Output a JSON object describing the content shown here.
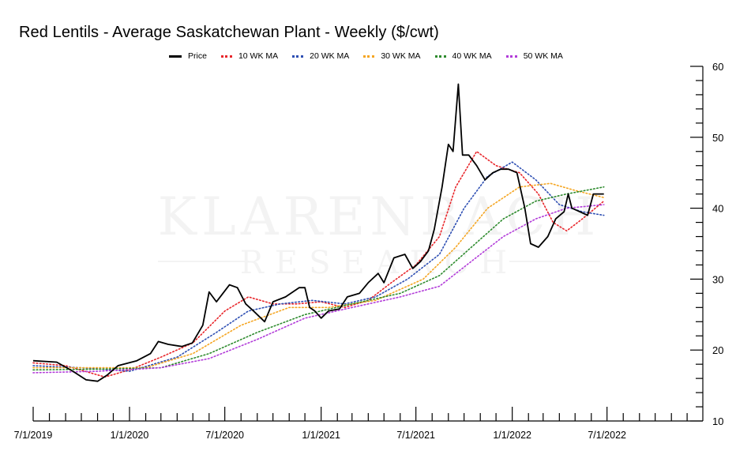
{
  "chart_data": {
    "type": "line",
    "title": "Red Lentils - Average Saskatchewan Plant - Weekly ($/cwt)",
    "watermark": [
      "KLARENBACH",
      "RESEARCH"
    ],
    "xlabel": "",
    "ylabel": "",
    "x_ticks": [
      "7/1/2019",
      "1/1/2020",
      "7/1/2020",
      "1/1/2021",
      "7/1/2021",
      "1/1/2022",
      "7/1/2022"
    ],
    "y_ticks": [
      10,
      20,
      30,
      40,
      50,
      60
    ],
    "ylim": [
      10,
      60
    ],
    "xlim": [
      "2019-07-01",
      "2022-12-31"
    ],
    "grid": false,
    "legend_position": "top",
    "series": [
      {
        "name": "Price",
        "color": "#000000",
        "style": "solid",
        "points": [
          [
            "2019-07-01",
            18.5
          ],
          [
            "2019-08-15",
            18.3
          ],
          [
            "2019-09-15",
            17.0
          ],
          [
            "2019-10-10",
            15.8
          ],
          [
            "2019-11-01",
            15.6
          ],
          [
            "2019-11-20",
            16.5
          ],
          [
            "2019-12-10",
            17.8
          ],
          [
            "2020-01-15",
            18.5
          ],
          [
            "2020-02-10",
            19.5
          ],
          [
            "2020-02-25",
            21.2
          ],
          [
            "2020-03-15",
            20.8
          ],
          [
            "2020-04-10",
            20.5
          ],
          [
            "2020-04-30",
            21.0
          ],
          [
            "2020-05-20",
            23.5
          ],
          [
            "2020-06-01",
            28.2
          ],
          [
            "2020-06-15",
            26.8
          ],
          [
            "2020-07-10",
            29.2
          ],
          [
            "2020-07-25",
            28.8
          ],
          [
            "2020-08-10",
            26.5
          ],
          [
            "2020-08-25",
            25.5
          ],
          [
            "2020-09-15",
            24.0
          ],
          [
            "2020-10-01",
            26.8
          ],
          [
            "2020-10-25",
            27.5
          ],
          [
            "2020-11-20",
            28.8
          ],
          [
            "2020-12-01",
            28.8
          ],
          [
            "2020-12-10",
            26.0
          ],
          [
            "2020-12-20",
            25.5
          ],
          [
            "2021-01-01",
            24.5
          ],
          [
            "2021-01-15",
            25.5
          ],
          [
            "2021-02-05",
            25.8
          ],
          [
            "2021-02-20",
            27.5
          ],
          [
            "2021-03-15",
            28.0
          ],
          [
            "2021-04-01",
            29.5
          ],
          [
            "2021-04-20",
            30.8
          ],
          [
            "2021-05-01",
            29.5
          ],
          [
            "2021-05-20",
            33.0
          ],
          [
            "2021-06-10",
            33.5
          ],
          [
            "2021-06-25",
            31.5
          ],
          [
            "2021-07-10",
            32.5
          ],
          [
            "2021-07-25",
            34.0
          ],
          [
            "2021-08-05",
            37.0
          ],
          [
            "2021-08-20",
            43.0
          ],
          [
            "2021-09-01",
            49.0
          ],
          [
            "2021-09-10",
            48.0
          ],
          [
            "2021-09-20",
            57.5
          ],
          [
            "2021-09-28",
            47.5
          ],
          [
            "2021-10-10",
            47.5
          ],
          [
            "2021-10-25",
            46.0
          ],
          [
            "2021-11-10",
            44.0
          ],
          [
            "2021-11-25",
            45.0
          ],
          [
            "2021-12-10",
            45.5
          ],
          [
            "2021-12-25",
            45.5
          ],
          [
            "2022-01-10",
            45.0
          ],
          [
            "2022-01-25",
            40.0
          ],
          [
            "2022-02-05",
            35.0
          ],
          [
            "2022-02-20",
            34.5
          ],
          [
            "2022-03-10",
            36.0
          ],
          [
            "2022-03-25",
            38.5
          ],
          [
            "2022-04-10",
            39.5
          ],
          [
            "2022-04-18",
            42.0
          ],
          [
            "2022-04-25",
            40.0
          ],
          [
            "2022-05-10",
            39.5
          ],
          [
            "2022-05-25",
            39.0
          ],
          [
            "2022-06-05",
            42.0
          ],
          [
            "2022-06-25",
            42.0
          ]
        ]
      },
      {
        "name": "10 WK MA",
        "color": "#e8262b",
        "style": "dotted",
        "points": [
          [
            "2019-07-01",
            18.2
          ],
          [
            "2019-09-01",
            17.8
          ],
          [
            "2019-11-15",
            16.2
          ],
          [
            "2020-01-01",
            17.2
          ],
          [
            "2020-03-01",
            19.0
          ],
          [
            "2020-05-01",
            21.0
          ],
          [
            "2020-07-01",
            25.5
          ],
          [
            "2020-08-15",
            27.5
          ],
          [
            "2020-10-01",
            26.5
          ],
          [
            "2020-11-15",
            26.5
          ],
          [
            "2021-01-01",
            26.8
          ],
          [
            "2021-02-15",
            26.0
          ],
          [
            "2021-04-01",
            27.0
          ],
          [
            "2021-05-15",
            29.5
          ],
          [
            "2021-07-01",
            32.0
          ],
          [
            "2021-08-15",
            36.0
          ],
          [
            "2021-09-15",
            43.0
          ],
          [
            "2021-10-25",
            48.0
          ],
          [
            "2021-12-01",
            46.0
          ],
          [
            "2022-01-15",
            45.0
          ],
          [
            "2022-02-20",
            42.0
          ],
          [
            "2022-03-20",
            38.0
          ],
          [
            "2022-04-15",
            36.8
          ],
          [
            "2022-05-15",
            38.5
          ],
          [
            "2022-06-25",
            41.0
          ]
        ]
      },
      {
        "name": "20 WK MA",
        "color": "#2e4fb3",
        "style": "dotted",
        "points": [
          [
            "2019-07-01",
            17.8
          ],
          [
            "2019-10-01",
            17.5
          ],
          [
            "2020-01-01",
            17.0
          ],
          [
            "2020-04-01",
            19.0
          ],
          [
            "2020-06-15",
            22.5
          ],
          [
            "2020-08-15",
            25.5
          ],
          [
            "2020-10-15",
            26.5
          ],
          [
            "2020-12-15",
            27.0
          ],
          [
            "2021-02-15",
            26.5
          ],
          [
            "2021-04-15",
            27.5
          ],
          [
            "2021-06-15",
            30.0
          ],
          [
            "2021-08-15",
            33.5
          ],
          [
            "2021-10-01",
            40.0
          ],
          [
            "2021-11-15",
            44.5
          ],
          [
            "2022-01-01",
            46.5
          ],
          [
            "2022-02-15",
            44.0
          ],
          [
            "2022-04-01",
            40.5
          ],
          [
            "2022-05-15",
            39.5
          ],
          [
            "2022-06-25",
            39.0
          ]
        ]
      },
      {
        "name": "30 WK MA",
        "color": "#f5a623",
        "style": "dotted",
        "points": [
          [
            "2019-07-01",
            17.5
          ],
          [
            "2019-11-01",
            17.5
          ],
          [
            "2020-02-01",
            17.5
          ],
          [
            "2020-05-01",
            19.5
          ],
          [
            "2020-08-01",
            23.5
          ],
          [
            "2020-11-01",
            26.0
          ],
          [
            "2021-01-15",
            26.0
          ],
          [
            "2021-04-15",
            27.0
          ],
          [
            "2021-07-15",
            30.0
          ],
          [
            "2021-09-15",
            34.5
          ],
          [
            "2021-11-15",
            40.0
          ],
          [
            "2022-01-15",
            43.0
          ],
          [
            "2022-03-15",
            43.5
          ],
          [
            "2022-05-01",
            42.5
          ],
          [
            "2022-06-25",
            41.5
          ]
        ]
      },
      {
        "name": "40 WK MA",
        "color": "#2e8b2e",
        "style": "dotted",
        "points": [
          [
            "2019-07-01",
            17.2
          ],
          [
            "2019-11-01",
            17.3
          ],
          [
            "2020-03-01",
            17.5
          ],
          [
            "2020-06-01",
            19.5
          ],
          [
            "2020-09-01",
            22.5
          ],
          [
            "2020-12-01",
            25.0
          ],
          [
            "2021-03-01",
            26.5
          ],
          [
            "2021-06-01",
            28.0
          ],
          [
            "2021-08-15",
            30.5
          ],
          [
            "2021-10-15",
            34.5
          ],
          [
            "2021-12-15",
            38.5
          ],
          [
            "2022-02-15",
            41.0
          ],
          [
            "2022-04-15",
            42.0
          ],
          [
            "2022-06-25",
            43.0
          ]
        ]
      },
      {
        "name": "50 WK MA",
        "color": "#b23cd9",
        "style": "dotted",
        "points": [
          [
            "2019-07-01",
            16.8
          ],
          [
            "2019-11-01",
            17.0
          ],
          [
            "2020-03-01",
            17.5
          ],
          [
            "2020-06-01",
            18.8
          ],
          [
            "2020-09-01",
            21.5
          ],
          [
            "2020-12-01",
            24.5
          ],
          [
            "2021-03-01",
            26.0
          ],
          [
            "2021-06-01",
            27.5
          ],
          [
            "2021-08-15",
            29.0
          ],
          [
            "2021-10-15",
            32.5
          ],
          [
            "2021-12-15",
            36.0
          ],
          [
            "2022-02-15",
            38.5
          ],
          [
            "2022-04-15",
            40.0
          ],
          [
            "2022-06-25",
            40.5
          ]
        ]
      }
    ]
  }
}
